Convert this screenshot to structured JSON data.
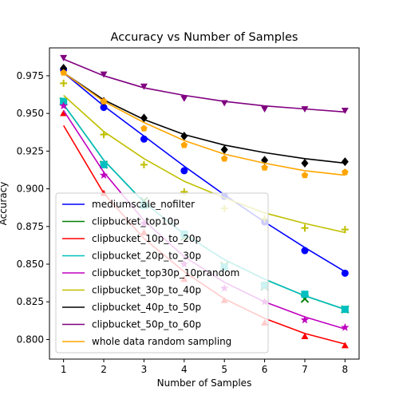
{
  "chart_data": {
    "type": "scatter",
    "title": "Accuracy vs Number of Samples",
    "xlabel": "Number of Samples",
    "ylabel": "Accuracy",
    "x": [
      1,
      2,
      3,
      4,
      5,
      6,
      7,
      8
    ],
    "xlim": [
      0.65,
      8.35
    ],
    "ylim": [
      0.787,
      0.9935
    ],
    "yticks": [
      0.8,
      0.825,
      0.85,
      0.875,
      0.9,
      0.925,
      0.95,
      0.975
    ],
    "ytick_labels": [
      "0.800",
      "0.825",
      "0.850",
      "0.875",
      "0.900",
      "0.925",
      "0.950",
      "0.975"
    ],
    "xticks": [
      1,
      2,
      3,
      4,
      5,
      6,
      7,
      8
    ],
    "xtick_labels": [
      "1",
      "2",
      "3",
      "4",
      "5",
      "6",
      "7",
      "8"
    ],
    "grid": false,
    "legend_position": "lower-left",
    "series": [
      {
        "name": "mediumscale_nofilter",
        "color": "#0000ff",
        "marker": "circle",
        "values": [
          0.979,
          0.954,
          0.933,
          0.912,
          0.895,
          0.878,
          0.859,
          0.844
        ],
        "fit": [
          0.977,
          0.955,
          0.935,
          0.915,
          0.896,
          0.878,
          0.861,
          0.845
        ]
      },
      {
        "name": "clipbucket_top10p",
        "color": "#008000",
        "marker": "x",
        "values": [
          0.958,
          0.916,
          0.892,
          0.868,
          0.849,
          0.835,
          0.827,
          0.82
        ],
        "fit": [
          0.956,
          0.919,
          0.891,
          0.87,
          0.853,
          0.84,
          0.829,
          0.82
        ]
      },
      {
        "name": "clipbucket_10p_to_20p",
        "color": "#ff0000",
        "marker": "triangle",
        "values": [
          0.95,
          0.897,
          0.871,
          0.84,
          0.826,
          0.811,
          0.802,
          0.796
        ],
        "fit": [
          0.942,
          0.897,
          0.867,
          0.845,
          0.827,
          0.814,
          0.804,
          0.797
        ]
      },
      {
        "name": "clipbucket_20p_to_30p",
        "color": "#00bfbf",
        "marker": "square",
        "values": [
          0.958,
          0.916,
          0.889,
          0.87,
          0.848,
          0.836,
          0.83,
          0.82
        ],
        "fit": [
          0.956,
          0.919,
          0.891,
          0.87,
          0.853,
          0.84,
          0.829,
          0.82
        ]
      },
      {
        "name": "clipbucket_top30p_10prandom",
        "color": "#bf00bf",
        "marker": "star",
        "values": [
          0.955,
          0.909,
          0.877,
          0.85,
          0.834,
          0.825,
          0.813,
          0.808
        ],
        "fit": [
          0.952,
          0.911,
          0.879,
          0.855,
          0.838,
          0.825,
          0.815,
          0.807
        ]
      },
      {
        "name": "clipbucket_30p_to_40p",
        "color": "#bfbf00",
        "marker": "plus",
        "values": [
          0.97,
          0.936,
          0.916,
          0.898,
          0.887,
          0.88,
          0.874,
          0.873
        ],
        "fit": [
          0.962,
          0.938,
          0.92,
          0.905,
          0.894,
          0.884,
          0.877,
          0.871
        ]
      },
      {
        "name": "clipbucket_40p_to_50p",
        "color": "#000000",
        "marker": "diamond",
        "values": [
          0.98,
          0.958,
          0.947,
          0.935,
          0.926,
          0.919,
          0.917,
          0.918
        ],
        "fit": [
          0.977,
          0.959,
          0.946,
          0.936,
          0.929,
          0.924,
          0.92,
          0.917
        ]
      },
      {
        "name": "clipbucket_50p_to_60p",
        "color": "#800080",
        "marker": "triangle-down",
        "values": [
          0.987,
          0.976,
          0.968,
          0.96,
          0.957,
          0.953,
          0.953,
          0.952
        ],
        "fit": [
          0.986,
          0.975,
          0.967,
          0.962,
          0.958,
          0.955,
          0.953,
          0.951
        ]
      },
      {
        "name": "whole data random sampling",
        "color": "#ffa500",
        "marker": "pentagon",
        "values": [
          0.977,
          0.958,
          0.94,
          0.929,
          0.92,
          0.914,
          0.909,
          0.911
        ],
        "fit": [
          0.977,
          0.958,
          0.944,
          0.932,
          0.923,
          0.917,
          0.912,
          0.909
        ]
      }
    ]
  }
}
